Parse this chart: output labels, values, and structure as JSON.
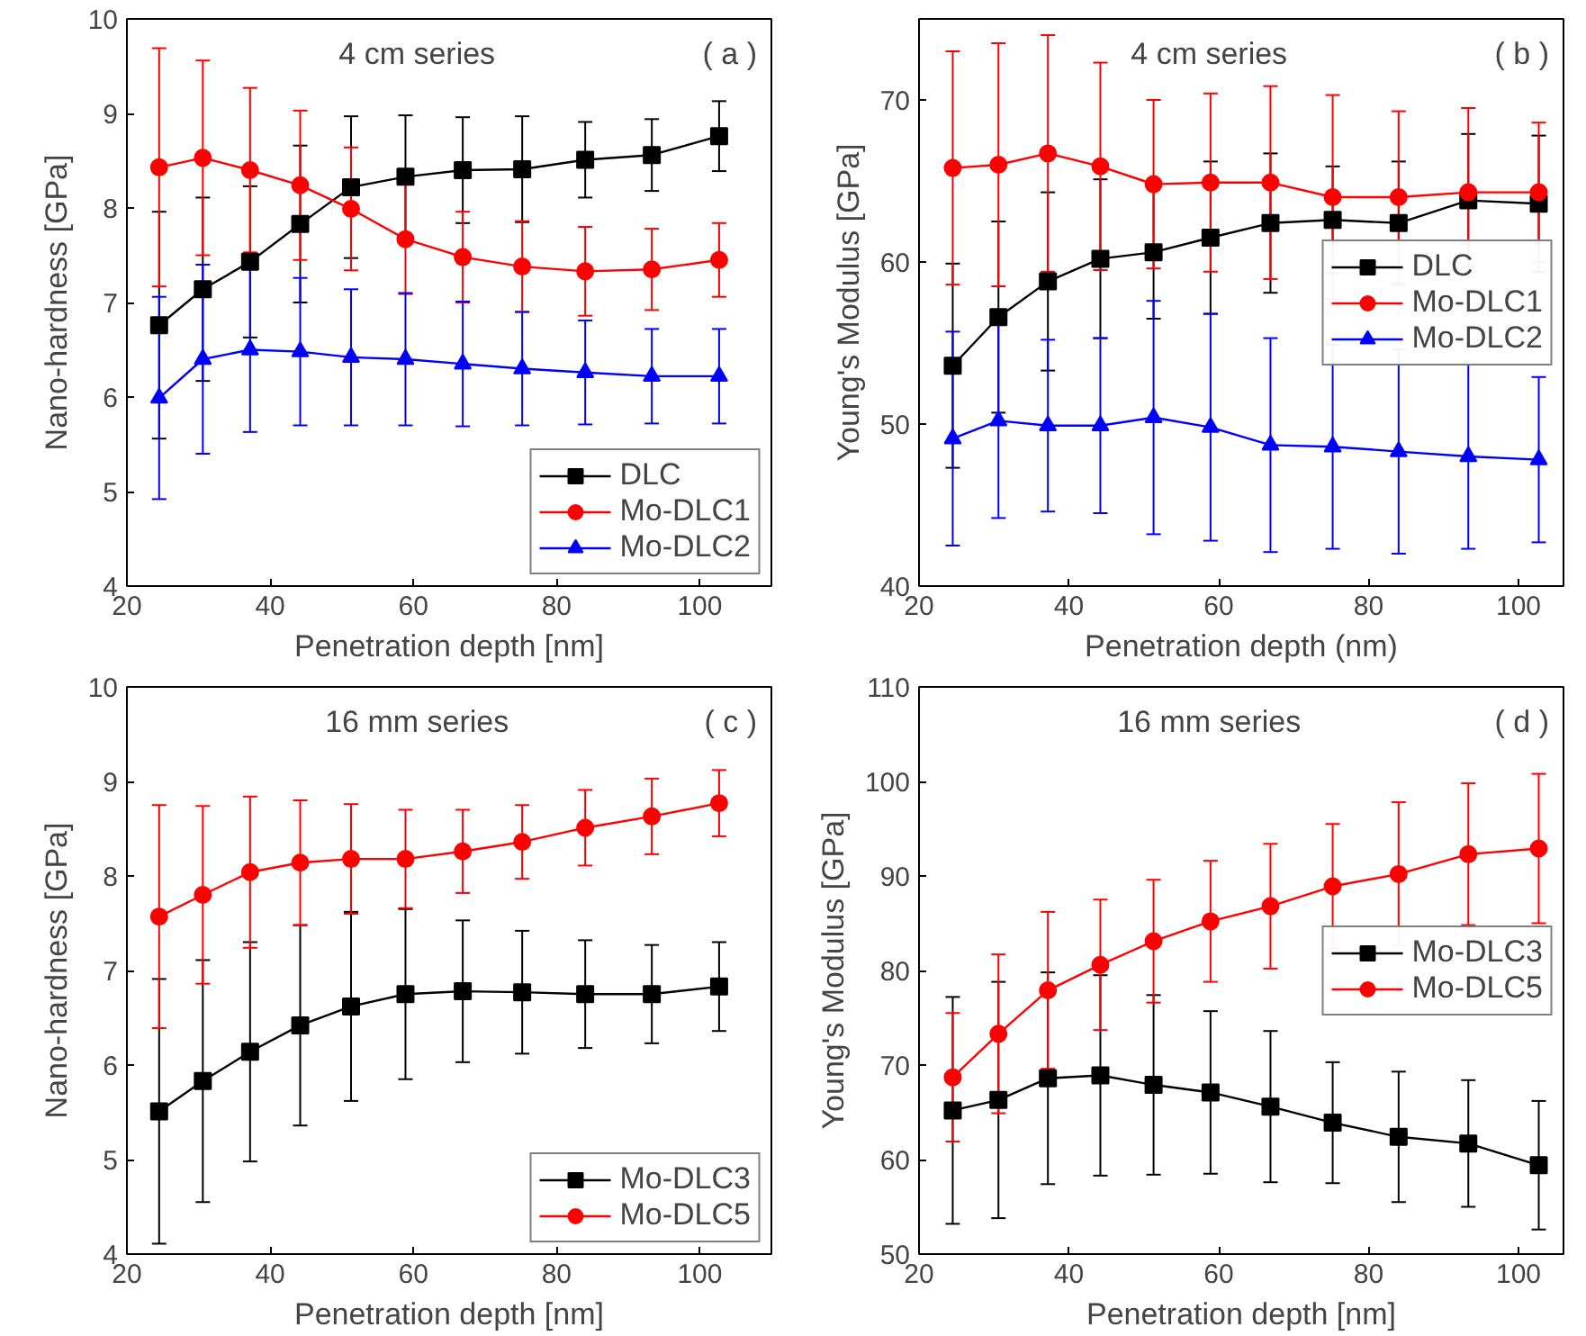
{
  "chart_data": [
    {
      "type": "line",
      "xlabel": "Penetration depth [nm]",
      "ylabel": "Nano-hardness [GPa]",
      "annotations": [
        "4 cm series",
        "( a )"
      ],
      "x": [
        24.5,
        30.6,
        37.2,
        44.2,
        51.3,
        58.9,
        66.9,
        75.2,
        84.0,
        93.3,
        102.7
      ],
      "xlim": [
        20,
        110
      ],
      "xticks": [
        20,
        40,
        60,
        80,
        100
      ],
      "ylim": [
        4,
        10
      ],
      "yticks": [
        4,
        5,
        6,
        7,
        8,
        9,
        10
      ],
      "legend": "bottom right",
      "grid": false,
      "line_style": "solid",
      "series": [
        {
          "name": "DLC",
          "color": "#000000",
          "marker": "square",
          "values": [
            6.76,
            7.14,
            7.43,
            7.83,
            8.22,
            8.33,
            8.4,
            8.41,
            8.51,
            8.56,
            8.76
          ],
          "errors": [
            1.2,
            0.97,
            0.8,
            0.83,
            0.75,
            0.65,
            0.56,
            0.56,
            0.4,
            0.38,
            0.37
          ]
        },
        {
          "name": "Mo-DLC1",
          "color": "#ff0000",
          "marker": "circle",
          "values": [
            8.43,
            8.53,
            8.4,
            8.24,
            7.99,
            7.67,
            7.48,
            7.38,
            7.33,
            7.35,
            7.45
          ],
          "errors": [
            1.26,
            1.03,
            0.87,
            0.79,
            0.65,
            0.58,
            0.48,
            0.48,
            0.47,
            0.43,
            0.39
          ]
        },
        {
          "name": "Mo-DLC2",
          "color": "#0000ff",
          "marker": "triangle",
          "values": [
            5.99,
            6.4,
            6.5,
            6.48,
            6.42,
            6.4,
            6.35,
            6.3,
            6.26,
            6.22,
            6.22
          ],
          "errors": [
            1.07,
            1.0,
            0.87,
            0.78,
            0.72,
            0.7,
            0.66,
            0.6,
            0.55,
            0.5,
            0.5
          ]
        }
      ]
    },
    {
      "type": "line",
      "xlabel": "Penetration depth (nm)",
      "ylabel": "Young's Modulus [GPa]",
      "annotations": [
        "4 cm series",
        "( b )"
      ],
      "x": [
        24.5,
        30.6,
        37.2,
        44.2,
        51.3,
        58.9,
        66.9,
        75.2,
        84.0,
        93.3,
        102.7
      ],
      "xlim": [
        20,
        106
      ],
      "xticks": [
        20,
        40,
        60,
        80,
        100
      ],
      "ylim": [
        40,
        75
      ],
      "yticks": [
        40,
        50,
        60,
        70
      ],
      "legend": "right",
      "grid": false,
      "line_style": "solid",
      "series": [
        {
          "name": "DLC",
          "color": "#000000",
          "marker": "square",
          "values": [
            53.6,
            56.6,
            58.8,
            60.2,
            60.6,
            61.5,
            62.4,
            62.6,
            62.4,
            63.8,
            63.6
          ],
          "errors": [
            6.3,
            5.9,
            5.5,
            4.9,
            4.1,
            4.7,
            4.3,
            3.3,
            3.8,
            4.1,
            4.2
          ]
        },
        {
          "name": "Mo-DLC1",
          "color": "#ff0000",
          "marker": "circle",
          "values": [
            65.8,
            66.0,
            66.7,
            65.9,
            64.8,
            64.9,
            64.9,
            64.0,
            64.0,
            64.3,
            64.3
          ],
          "errors": [
            7.2,
            7.5,
            7.3,
            6.4,
            5.2,
            5.5,
            5.95,
            6.3,
            5.3,
            5.2,
            4.3
          ]
        },
        {
          "name": "Mo-DLC2",
          "color": "#0000ff",
          "marker": "triangle",
          "values": [
            49.1,
            50.2,
            49.9,
            49.9,
            50.4,
            49.8,
            48.7,
            48.6,
            48.3,
            48.0,
            47.8
          ],
          "errors": [
            6.6,
            6.0,
            5.3,
            5.4,
            7.2,
            7.0,
            6.6,
            6.3,
            6.3,
            5.7,
            5.1
          ]
        }
      ]
    },
    {
      "type": "line",
      "xlabel": "Penetration depth [nm]",
      "ylabel": "Nano-hardness [GPa]",
      "annotations": [
        "16 mm series",
        "( c )"
      ],
      "x": [
        24.5,
        30.6,
        37.2,
        44.2,
        51.3,
        58.9,
        66.9,
        75.2,
        84.0,
        93.3,
        102.7
      ],
      "xlim": [
        20,
        110
      ],
      "xticks": [
        20,
        40,
        60,
        80,
        100
      ],
      "ylim": [
        4,
        10
      ],
      "yticks": [
        4,
        5,
        6,
        7,
        8,
        9,
        10
      ],
      "legend": "bottom right",
      "grid": false,
      "line_style": "solid",
      "series": [
        {
          "name": "Mo-DLC3",
          "color": "#000000",
          "marker": "square",
          "values": [
            5.51,
            5.83,
            6.14,
            6.42,
            6.62,
            6.75,
            6.78,
            6.77,
            6.75,
            6.75,
            6.83
          ],
          "errors": [
            1.4,
            1.28,
            1.16,
            1.06,
            1.0,
            0.9,
            0.75,
            0.65,
            0.57,
            0.52,
            0.47
          ]
        },
        {
          "name": "Mo-DLC5",
          "color": "#ff0000",
          "marker": "circle",
          "values": [
            7.57,
            7.8,
            8.04,
            8.14,
            8.18,
            8.18,
            8.26,
            8.36,
            8.51,
            8.63,
            8.77
          ],
          "errors": [
            1.18,
            0.94,
            0.8,
            0.66,
            0.58,
            0.52,
            0.44,
            0.39,
            0.4,
            0.4,
            0.35
          ]
        }
      ]
    },
    {
      "type": "line",
      "xlabel": "Penetration depth [nm]",
      "ylabel": "Young's Modulus [GPa]",
      "annotations": [
        "16 mm series",
        "( d )"
      ],
      "x": [
        24.5,
        30.6,
        37.2,
        44.2,
        51.3,
        58.9,
        66.9,
        75.2,
        84.0,
        93.3,
        102.7
      ],
      "xlim": [
        20,
        106
      ],
      "xticks": [
        20,
        40,
        60,
        80,
        100
      ],
      "ylim": [
        50,
        110
      ],
      "yticks": [
        50,
        60,
        70,
        80,
        90,
        100,
        110
      ],
      "legend": "right",
      "grid": false,
      "line_style": "solid",
      "series": [
        {
          "name": "Mo-DLC3",
          "color": "#000000",
          "marker": "square",
          "values": [
            65.2,
            66.3,
            68.6,
            68.9,
            67.9,
            67.1,
            65.6,
            63.9,
            62.4,
            61.7,
            59.4
          ],
          "errors": [
            12,
            12.5,
            11.2,
            10.6,
            9.5,
            8.6,
            8,
            6.4,
            6.9,
            6.7,
            6.8
          ]
        },
        {
          "name": "Mo-DLC5",
          "color": "#ff0000",
          "marker": "circle",
          "values": [
            68.7,
            73.3,
            77.9,
            80.6,
            83.1,
            85.2,
            86.8,
            88.9,
            90.2,
            92.3,
            92.9
          ],
          "errors": [
            6.8,
            8.4,
            8.3,
            6.9,
            6.5,
            6.4,
            6.6,
            6.6,
            7.6,
            7.5,
            7.9
          ]
        }
      ]
    }
  ]
}
